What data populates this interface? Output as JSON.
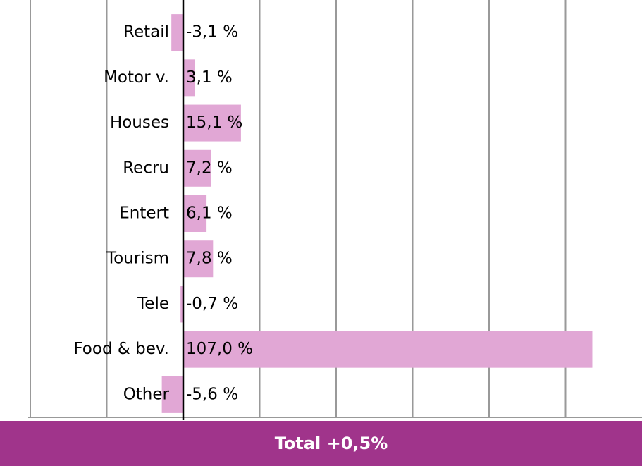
{
  "chart_data": {
    "type": "hbar",
    "categories": [
      "Retail",
      "Motor v.",
      "Houses",
      "Recru",
      "Entert",
      "Tourism",
      "Tele",
      "Food & bev.",
      "Other"
    ],
    "values": [
      -3.1,
      3.1,
      15.1,
      7.2,
      6.1,
      7.8,
      -0.7,
      107.0,
      -5.6
    ],
    "value_labels": [
      "-3,1 %",
      "3,1 %",
      "15,1 %",
      "7,2 %",
      "6,1 %",
      "7,8 %",
      "-0,7 %",
      "107,0 %",
      "-5,6 %"
    ],
    "color": "#e1a7d5",
    "xlim": [
      -40,
      120
    ],
    "xticks": [
      -40,
      -20,
      0,
      20,
      40,
      60,
      80,
      100
    ],
    "grid": true,
    "annotation": "Total +0,5%",
    "annotation_color": "#a0348b"
  }
}
